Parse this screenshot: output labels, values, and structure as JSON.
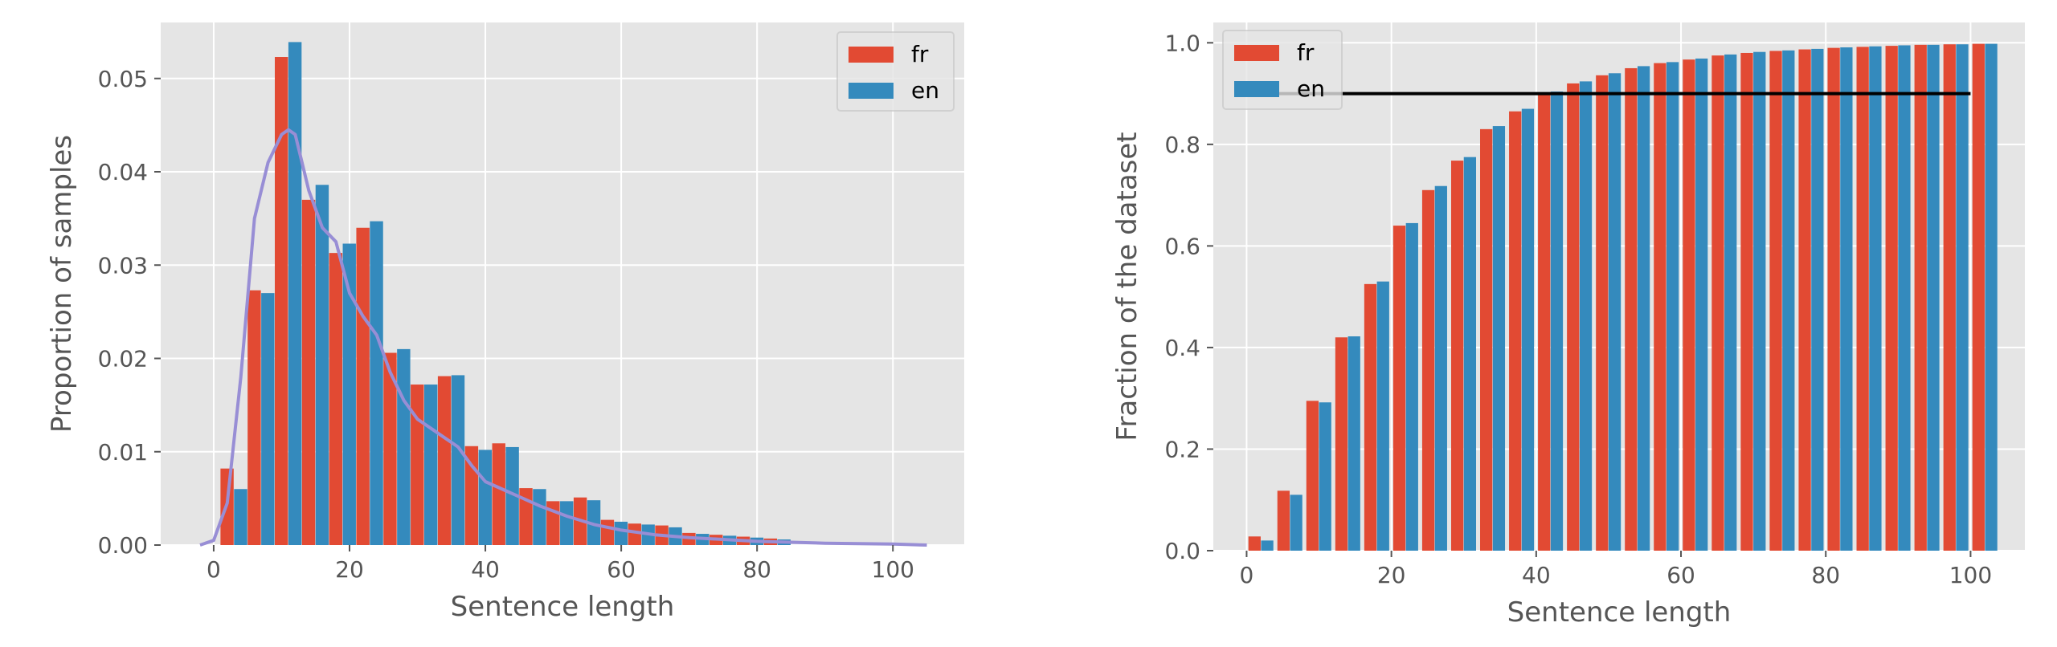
{
  "colors": {
    "fr": "#E24A33",
    "en": "#348ABD",
    "kde": "#988ED5",
    "threshold": "#000000",
    "panel": "#E5E5E5",
    "grid": "#FFFFFF"
  },
  "chart_data": [
    {
      "type": "bar",
      "xlabel": "Sentence length",
      "ylabel": "Proportion of samples",
      "xlim": [
        -7.8,
        110.5
      ],
      "ylim": [
        0,
        0.056
      ],
      "xticks": [
        "0",
        "20",
        "40",
        "60",
        "80",
        "100"
      ],
      "xtick_values": [
        0,
        20,
        40,
        60,
        80,
        100
      ],
      "yticks": [
        "0.00",
        "0.01",
        "0.02",
        "0.03",
        "0.04",
        "0.05"
      ],
      "ytick_values": [
        0,
        0.01,
        0.02,
        0.03,
        0.04,
        0.05
      ],
      "grid": true,
      "legend_position": "top-right",
      "bin_edges": [
        1,
        5,
        9,
        13,
        17,
        21,
        25,
        29,
        33,
        37,
        41,
        45,
        49,
        53,
        57,
        61,
        65,
        69,
        73,
        77,
        81
      ],
      "series": [
        {
          "name": "fr",
          "values": [
            0.0082,
            0.0273,
            0.0523,
            0.037,
            0.0313,
            0.034,
            0.0206,
            0.0172,
            0.0181,
            0.0106,
            0.0109,
            0.0061,
            0.0047,
            0.0051,
            0.0027,
            0.0023,
            0.0021,
            0.0013,
            0.0011,
            0.0009,
            0.0007
          ]
        },
        {
          "name": "en",
          "values": [
            0.006,
            0.027,
            0.0539,
            0.0386,
            0.0323,
            0.0347,
            0.021,
            0.0172,
            0.0182,
            0.0102,
            0.0105,
            0.006,
            0.0047,
            0.0048,
            0.0025,
            0.0022,
            0.0019,
            0.0012,
            0.001,
            0.0008,
            0.0006
          ]
        }
      ],
      "kde": {
        "x": [
          -2,
          0,
          2,
          4,
          6,
          8,
          10,
          11,
          12,
          14,
          16,
          18,
          20,
          22,
          24,
          26,
          28,
          30,
          32,
          34,
          36,
          38,
          40,
          44,
          48,
          52,
          56,
          60,
          65,
          70,
          75,
          80,
          90,
          100,
          105
        ],
        "y": [
          0.0,
          0.0005,
          0.0045,
          0.018,
          0.035,
          0.041,
          0.044,
          0.0445,
          0.044,
          0.038,
          0.034,
          0.0325,
          0.027,
          0.0245,
          0.0225,
          0.0185,
          0.0155,
          0.0135,
          0.0125,
          0.0115,
          0.0105,
          0.0085,
          0.0068,
          0.0055,
          0.0042,
          0.0031,
          0.0022,
          0.0016,
          0.0011,
          0.0008,
          0.0006,
          0.0004,
          0.0002,
          0.0001,
          0.0
        ]
      }
    },
    {
      "type": "bar",
      "xlabel": "Sentence length",
      "ylabel": "Fraction of the dataset",
      "xlim": [
        -4.6,
        107.5
      ],
      "ylim": [
        0,
        1.04
      ],
      "xticks": [
        "0",
        "20",
        "40",
        "60",
        "80",
        "100"
      ],
      "xtick_values": [
        0,
        20,
        40,
        60,
        80,
        100
      ],
      "yticks": [
        "0.0",
        "0.2",
        "0.4",
        "0.6",
        "0.8",
        "1.0"
      ],
      "ytick_values": [
        0,
        0.2,
        0.4,
        0.6,
        0.8,
        1.0
      ],
      "grid": true,
      "legend_position": "top-left",
      "x": [
        2,
        6,
        10,
        14,
        18,
        22,
        26,
        30,
        34,
        38,
        42,
        46,
        50,
        54,
        58,
        62,
        66,
        70,
        74,
        78,
        82,
        86,
        90,
        94,
        98,
        102
      ],
      "series": [
        {
          "name": "fr",
          "values": [
            0.028,
            0.118,
            0.295,
            0.42,
            0.525,
            0.64,
            0.71,
            0.768,
            0.83,
            0.865,
            0.9,
            0.92,
            0.936,
            0.95,
            0.96,
            0.967,
            0.975,
            0.98,
            0.984,
            0.987,
            0.99,
            0.992,
            0.994,
            0.996,
            0.997,
            0.998
          ]
        },
        {
          "name": "en",
          "values": [
            0.02,
            0.11,
            0.292,
            0.422,
            0.53,
            0.645,
            0.718,
            0.775,
            0.836,
            0.87,
            0.904,
            0.924,
            0.94,
            0.954,
            0.962,
            0.969,
            0.977,
            0.982,
            0.985,
            0.988,
            0.991,
            0.993,
            0.995,
            0.996,
            0.997,
            0.998
          ]
        }
      ],
      "threshold": {
        "y": 0.9,
        "x_start": 0,
        "x_end": 100
      }
    }
  ]
}
